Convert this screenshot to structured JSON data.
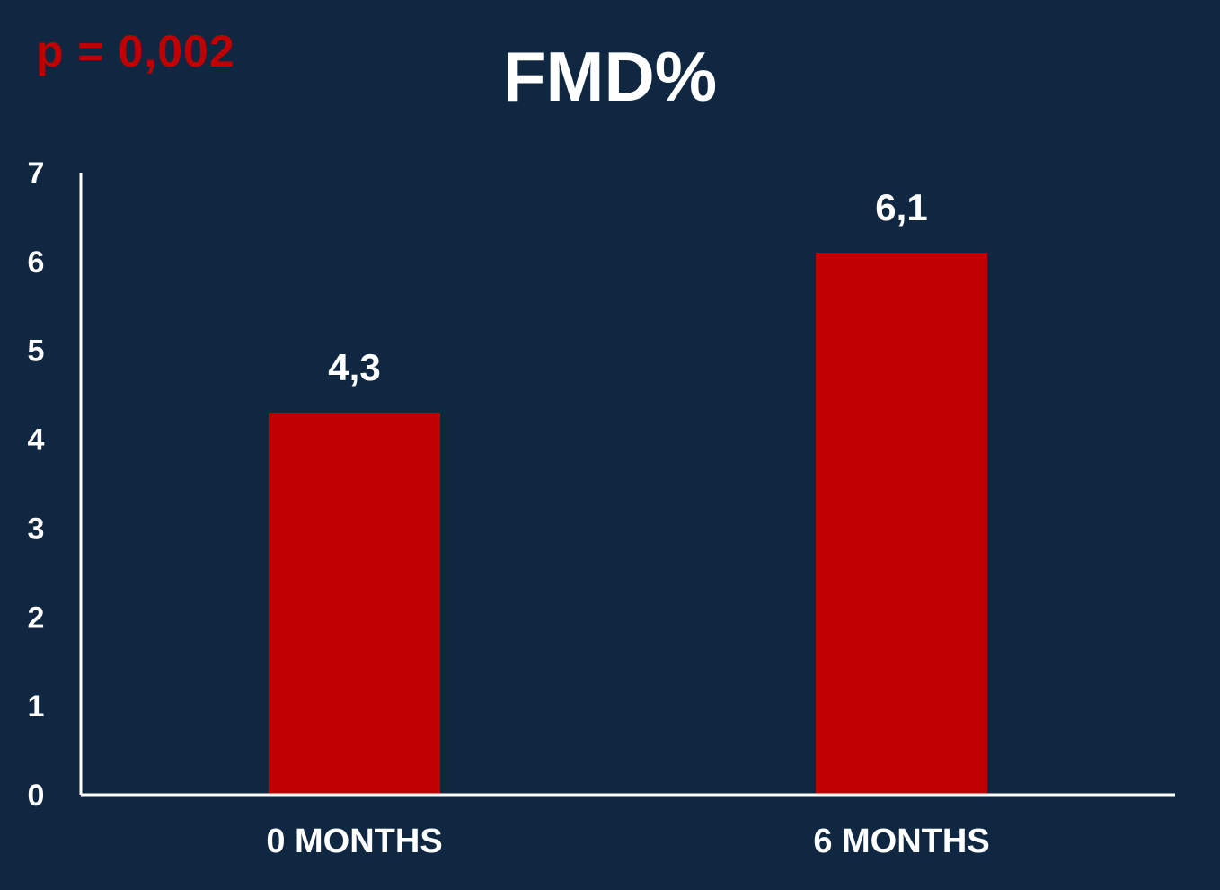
{
  "annotation": "p = 0,002",
  "colors": {
    "background": "#0f2741",
    "bar": "#c00000",
    "axis": "#ffffff",
    "text": "#ffffff",
    "annotation": "#c00000"
  },
  "chart_data": {
    "type": "bar",
    "title": "FMD%",
    "xlabel": "",
    "ylabel": "",
    "categories": [
      "0 MONTHS",
      "6 MONTHS"
    ],
    "values": [
      4.3,
      6.1
    ],
    "value_labels": [
      "4,3",
      "6,1"
    ],
    "ylim": [
      0,
      7
    ],
    "yticks": [
      0,
      1,
      2,
      3,
      4,
      5,
      6,
      7
    ],
    "grid": false,
    "legend": "none"
  }
}
